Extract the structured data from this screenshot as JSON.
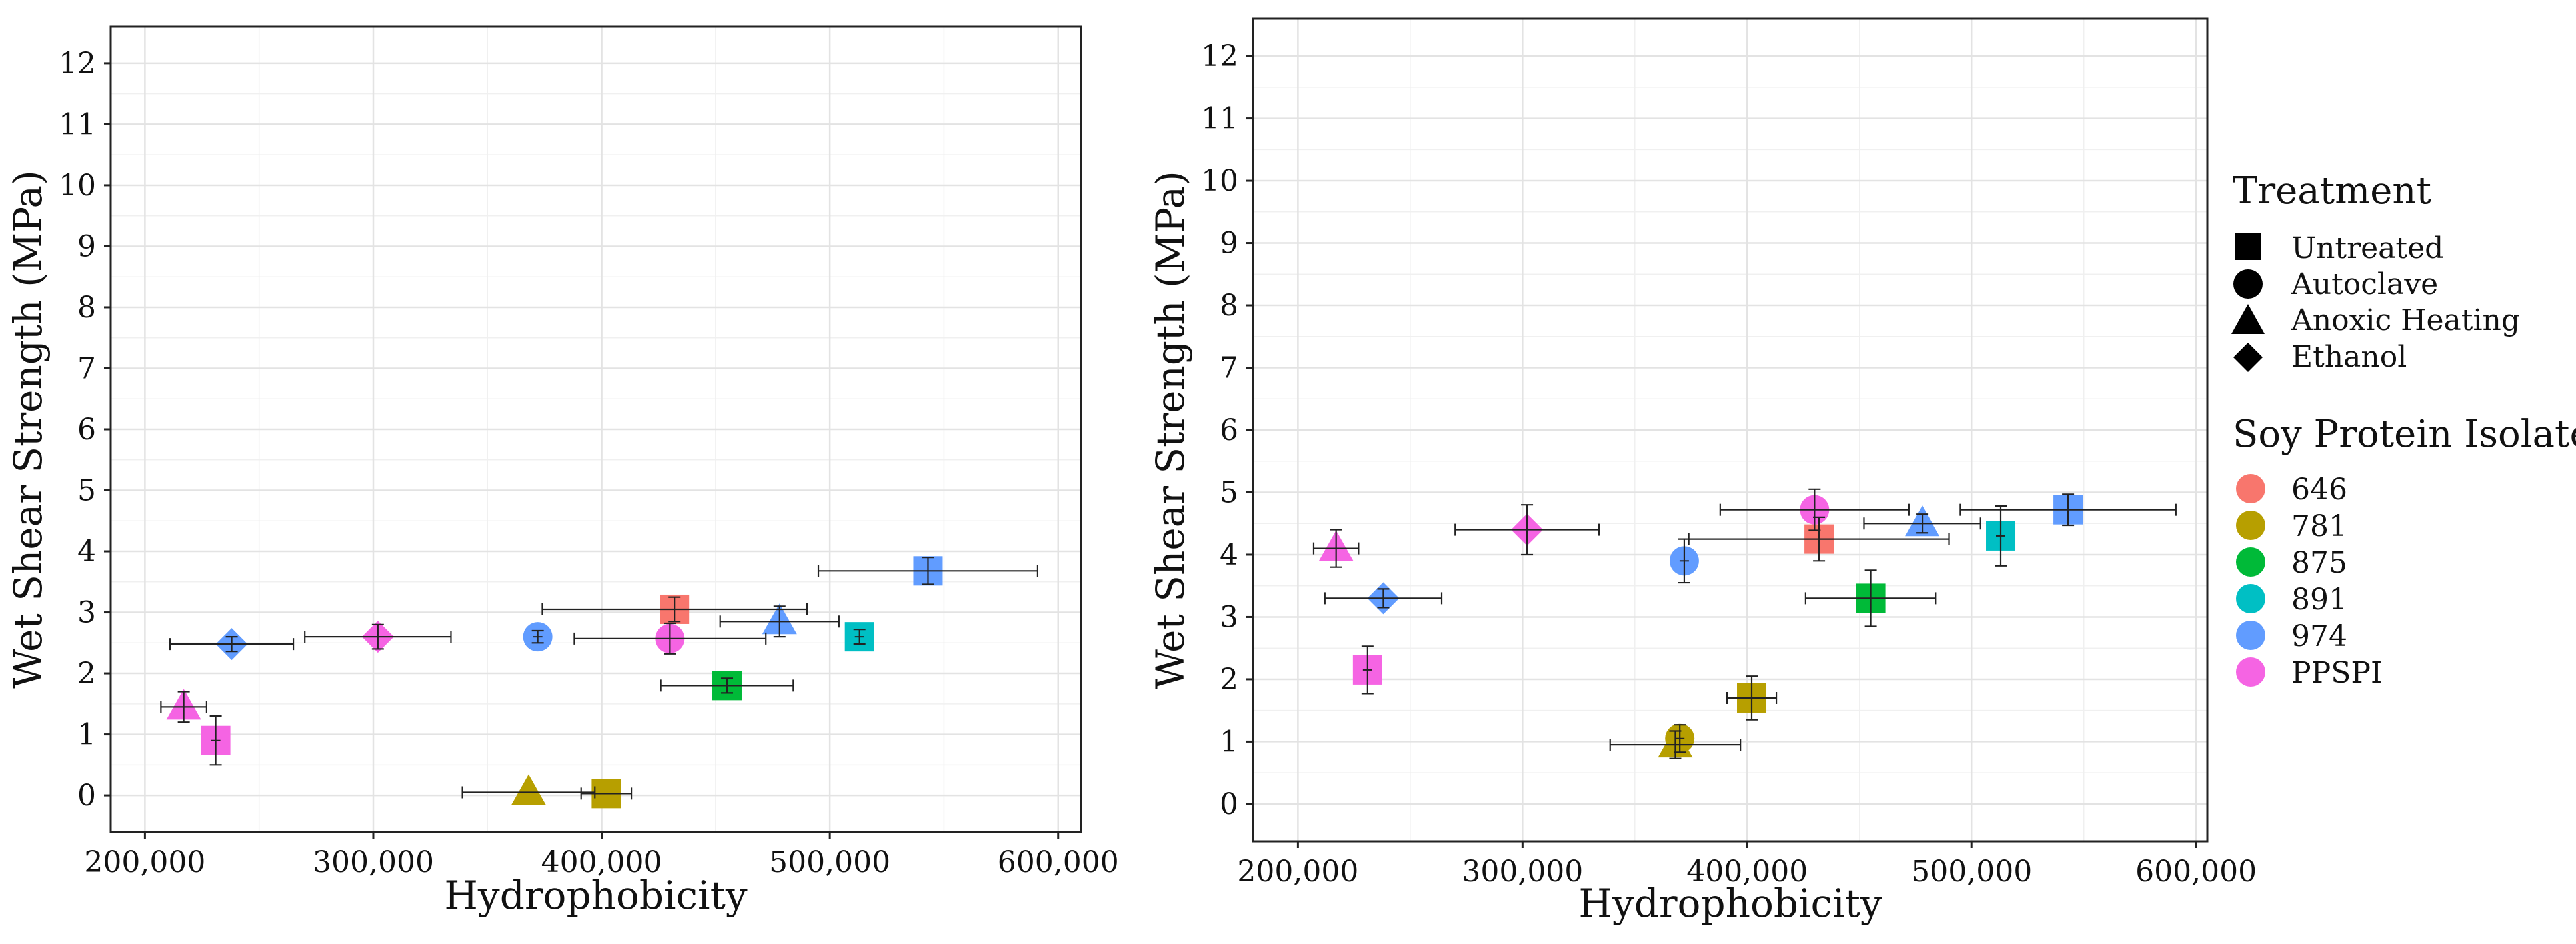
{
  "chart_data": [
    {
      "type": "scatter",
      "panel": "left",
      "xlabel": "Hydrophobicity",
      "ylabel": "Wet Shear Strength (MPa)",
      "xlim": [
        185000,
        610000
      ],
      "ylim": [
        -0.6,
        12.6
      ],
      "x_ticks": [
        200000,
        300000,
        400000,
        500000,
        600000
      ],
      "x_tick_labels": [
        "200,000",
        "300,000",
        "400,000",
        "500,000",
        "600,000"
      ],
      "y_ticks": [
        0,
        1,
        2,
        3,
        4,
        5,
        6,
        7,
        8,
        9,
        10,
        11,
        12
      ],
      "y_tick_labels": [
        "0",
        "1",
        "2",
        "3",
        "4",
        "5",
        "6",
        "7",
        "8",
        "9",
        "10",
        "11",
        "12"
      ],
      "grid": true,
      "points": [
        {
          "spi": "646",
          "treatment": "Untreated",
          "x": 432000,
          "y": 3.05,
          "xerr": 58000,
          "yerr": 0.2
        },
        {
          "spi": "781",
          "treatment": "Untreated",
          "x": 402000,
          "y": 0.03,
          "xerr": 11000,
          "yerr": 0.0
        },
        {
          "spi": "781",
          "treatment": "Anoxic Heating",
          "x": 368000,
          "y": 0.05,
          "xerr": 29000,
          "yerr": 0.0
        },
        {
          "spi": "875",
          "treatment": "Untreated",
          "x": 455000,
          "y": 1.8,
          "xerr": 29000,
          "yerr": 0.12
        },
        {
          "spi": "891",
          "treatment": "Untreated",
          "x": 513000,
          "y": 2.6,
          "xerr": 0,
          "yerr": 0.12
        },
        {
          "spi": "974",
          "treatment": "Untreated",
          "x": 543000,
          "y": 3.68,
          "xerr": 48000,
          "yerr": 0.22
        },
        {
          "spi": "974",
          "treatment": "Autoclave",
          "x": 372000,
          "y": 2.6,
          "xerr": 0,
          "yerr": 0.1
        },
        {
          "spi": "974",
          "treatment": "Anoxic Heating",
          "x": 478000,
          "y": 2.85,
          "xerr": 26000,
          "yerr": 0.25
        },
        {
          "spi": "974",
          "treatment": "Ethanol",
          "x": 238000,
          "y": 2.48,
          "xerr": 27000,
          "yerr": 0.12
        },
        {
          "spi": "PPSPI",
          "treatment": "Untreated",
          "x": 231000,
          "y": 0.9,
          "xerr": 0,
          "yerr": 0.4
        },
        {
          "spi": "PPSPI",
          "treatment": "Autoclave",
          "x": 430000,
          "y": 2.57,
          "xerr": 42000,
          "yerr": 0.25
        },
        {
          "spi": "PPSPI",
          "treatment": "Anoxic Heating",
          "x": 217000,
          "y": 1.45,
          "xerr": 10000,
          "yerr": 0.25
        },
        {
          "spi": "PPSPI",
          "treatment": "Ethanol",
          "x": 302000,
          "y": 2.6,
          "xerr": 32000,
          "yerr": 0.2
        }
      ]
    },
    {
      "type": "scatter",
      "panel": "right",
      "xlabel": "Hydrophobicity",
      "ylabel": "Wet Shear Strength (MPa)",
      "xlim": [
        180000,
        605000
      ],
      "ylim": [
        -0.6,
        12.6
      ],
      "x_ticks": [
        200000,
        300000,
        400000,
        500000,
        600000
      ],
      "x_tick_labels": [
        "200,000",
        "300,000",
        "400,000",
        "500,000",
        "600,000"
      ],
      "y_ticks": [
        0,
        1,
        2,
        3,
        4,
        5,
        6,
        7,
        8,
        9,
        10,
        11,
        12
      ],
      "y_tick_labels": [
        "0",
        "1",
        "2",
        "3",
        "4",
        "5",
        "6",
        "7",
        "8",
        "9",
        "10",
        "11",
        "12"
      ],
      "grid": true,
      "points": [
        {
          "spi": "646",
          "treatment": "Untreated",
          "x": 432000,
          "y": 4.25,
          "xerr": 58000,
          "yerr": 0.35
        },
        {
          "spi": "781",
          "treatment": "Untreated",
          "x": 402000,
          "y": 1.7,
          "xerr": 11000,
          "yerr": 0.35
        },
        {
          "spi": "781",
          "treatment": "Autoclave",
          "x": 370000,
          "y": 1.05,
          "xerr": 0,
          "yerr": 0.22
        },
        {
          "spi": "781",
          "treatment": "Anoxic Heating",
          "x": 368000,
          "y": 0.95,
          "xerr": 29000,
          "yerr": 0.22
        },
        {
          "spi": "875",
          "treatment": "Untreated",
          "x": 455000,
          "y": 3.3,
          "xerr": 29000,
          "yerr": 0.45
        },
        {
          "spi": "891",
          "treatment": "Untreated",
          "x": 513000,
          "y": 4.3,
          "xerr": 0,
          "yerr": 0.48
        },
        {
          "spi": "974",
          "treatment": "Untreated",
          "x": 543000,
          "y": 4.72,
          "xerr": 48000,
          "yerr": 0.25
        },
        {
          "spi": "974",
          "treatment": "Autoclave",
          "x": 372000,
          "y": 3.9,
          "xerr": 0,
          "yerr": 0.35
        },
        {
          "spi": "974",
          "treatment": "Anoxic Heating",
          "x": 478000,
          "y": 4.5,
          "xerr": 26000,
          "yerr": 0.15
        },
        {
          "spi": "974",
          "treatment": "Ethanol",
          "x": 238000,
          "y": 3.3,
          "xerr": 26000,
          "yerr": 0.15
        },
        {
          "spi": "PPSPI",
          "treatment": "Untreated",
          "x": 231000,
          "y": 2.15,
          "xerr": 0,
          "yerr": 0.38
        },
        {
          "spi": "PPSPI",
          "treatment": "Autoclave",
          "x": 430000,
          "y": 4.72,
          "xerr": 42000,
          "yerr": 0.33
        },
        {
          "spi": "PPSPI",
          "treatment": "Anoxic Heating",
          "x": 217000,
          "y": 4.1,
          "xerr": 10000,
          "yerr": 0.3
        },
        {
          "spi": "PPSPI",
          "treatment": "Ethanol",
          "x": 302000,
          "y": 4.4,
          "xerr": 32000,
          "yerr": 0.4
        }
      ]
    }
  ],
  "legend": {
    "treatment_title": "Treatment",
    "treatments": [
      {
        "label": "Untreated",
        "shape": "square"
      },
      {
        "label": "Autoclave",
        "shape": "circle"
      },
      {
        "label": "Anoxic Heating",
        "shape": "triangle"
      },
      {
        "label": "Ethanol",
        "shape": "diamond"
      }
    ],
    "spi_title": "Soy Protein Isolate",
    "spis": [
      {
        "label": "646",
        "color": "#F8766D"
      },
      {
        "label": "781",
        "color": "#B79F00"
      },
      {
        "label": "875",
        "color": "#00BA38"
      },
      {
        "label": "891",
        "color": "#00BFC4"
      },
      {
        "label": "974",
        "color": "#619CFF"
      },
      {
        "label": "PPSPI",
        "color": "#F564E3"
      }
    ]
  }
}
